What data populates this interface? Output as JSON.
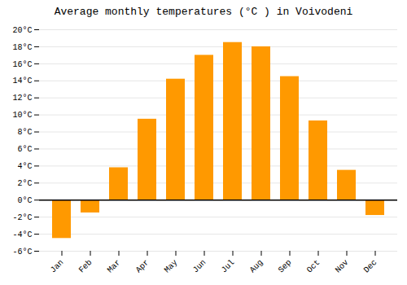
{
  "chart_data": {
    "type": "bar",
    "title": "Average monthly temperatures (°C ) in Voivodeni",
    "categories": [
      "Jan",
      "Feb",
      "Mar",
      "Apr",
      "May",
      "Jun",
      "Jul",
      "Aug",
      "Sep",
      "Oct",
      "Nov",
      "Dec"
    ],
    "values": [
      -4.5,
      -1.5,
      3.8,
      9.5,
      14.2,
      17.0,
      18.5,
      18.0,
      14.5,
      9.3,
      3.5,
      -1.8
    ],
    "color": "#FF9900",
    "ylim": [
      -6,
      20
    ],
    "yticks": [
      {
        "value": -6,
        "label": "-6°C"
      },
      {
        "value": -4,
        "label": "-4°C"
      },
      {
        "value": -2,
        "label": "-2°C"
      },
      {
        "value": 0,
        "label": "0°C"
      },
      {
        "value": 2,
        "label": "2°C"
      },
      {
        "value": 4,
        "label": "4°C"
      },
      {
        "value": 6,
        "label": "6°C"
      },
      {
        "value": 8,
        "label": "8°C"
      },
      {
        "value": 10,
        "label": "10°C"
      },
      {
        "value": 12,
        "label": "12°C"
      },
      {
        "value": 14,
        "label": "14°C"
      },
      {
        "value": 16,
        "label": "16°C"
      },
      {
        "value": 18,
        "label": "18°C"
      },
      {
        "value": 20,
        "label": "20°C"
      }
    ],
    "grid": true
  }
}
